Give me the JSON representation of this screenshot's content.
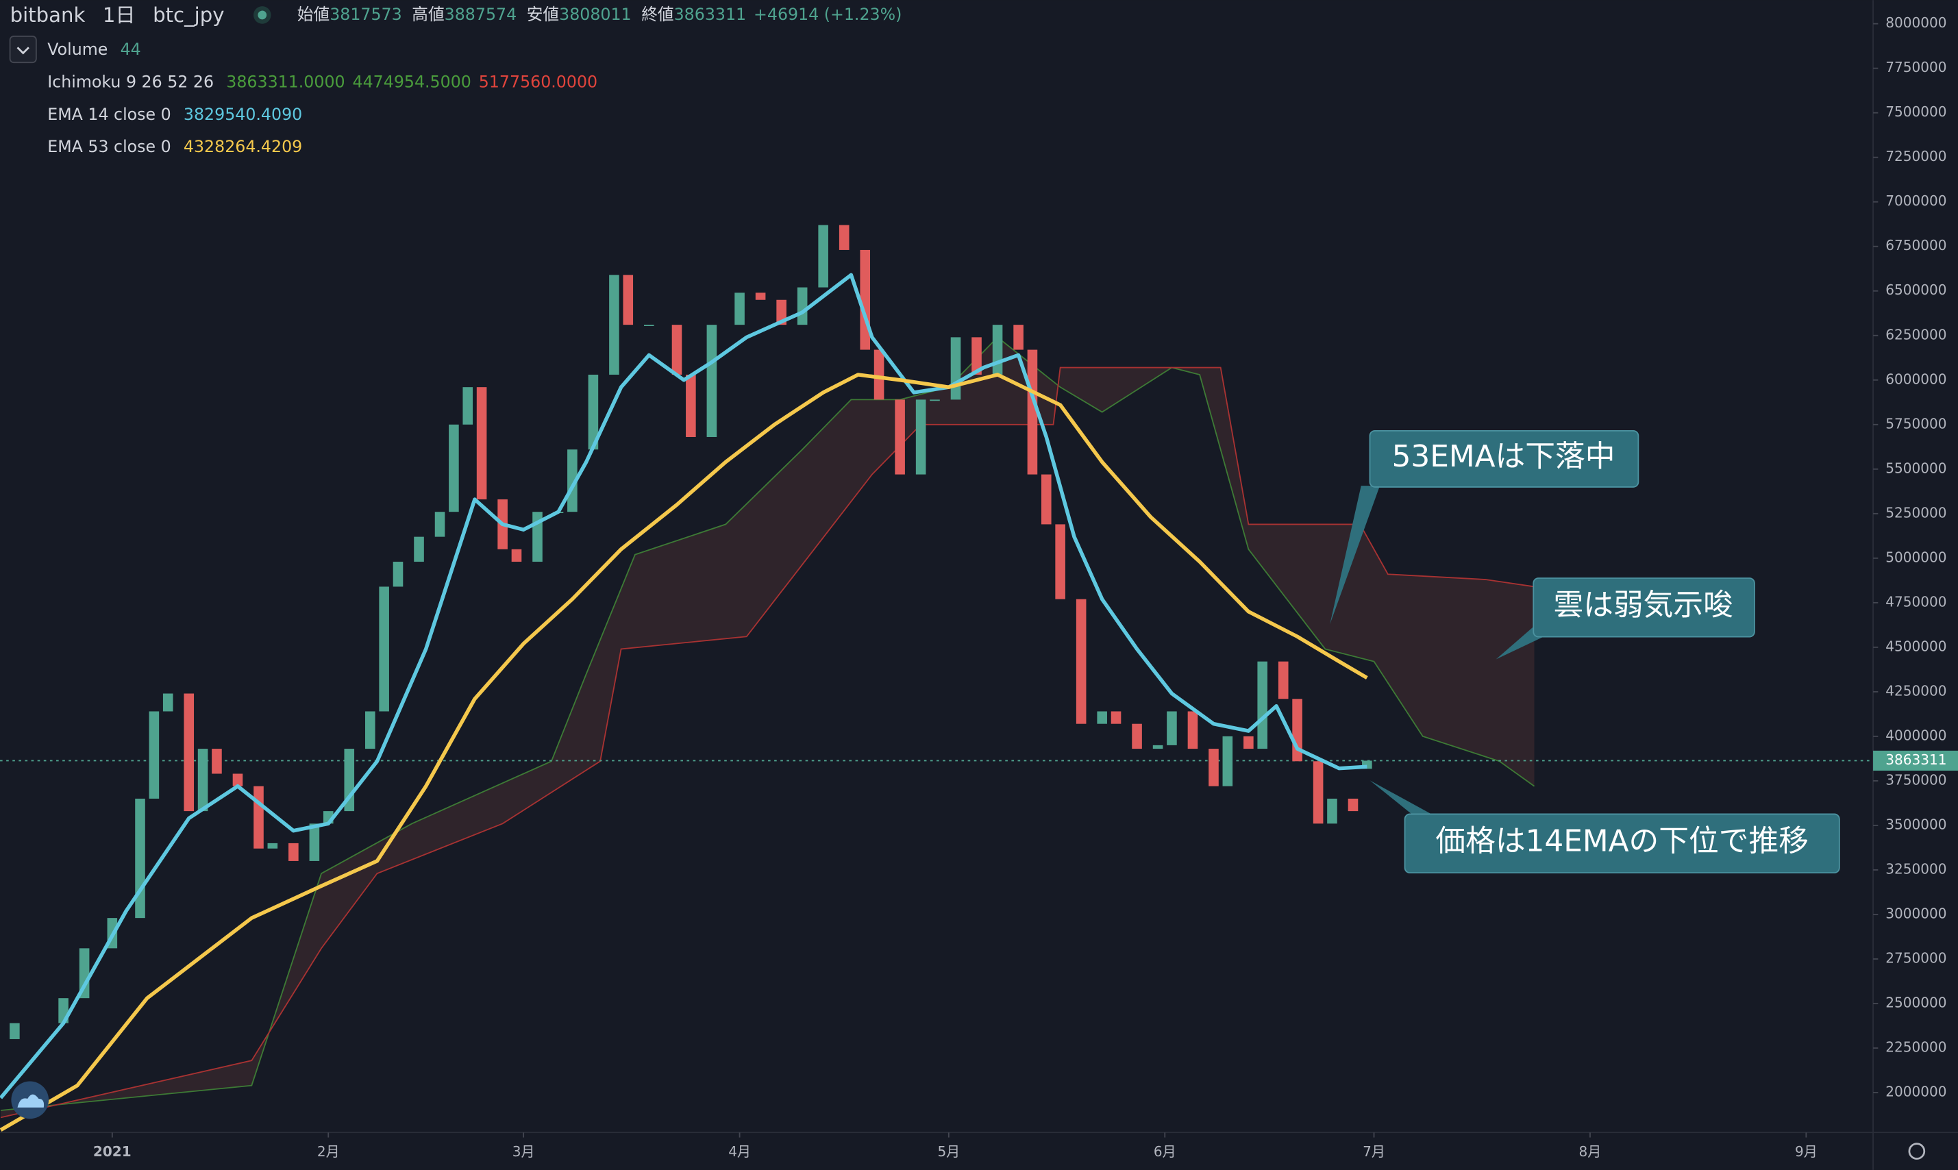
{
  "header": {
    "symbol": "bitbank",
    "interval": "1日",
    "pair": "btc_jpy",
    "open_label": "始値",
    "open": 3817573,
    "high_label": "高値",
    "high": 3887574,
    "low_label": "安値",
    "low": 3808011,
    "close_label": "終値",
    "close": 3863311,
    "change": "+46914 (+1.23%)"
  },
  "indicators": {
    "volume_name": "Volume",
    "volume_value": 44,
    "ichimoku_name": "Ichimoku 9 26 52 26",
    "ichimoku_values": [
      "3863311.0000",
      "4474954.5000",
      "5177560.0000"
    ],
    "ema14_name": "EMA 14 close 0",
    "ema14_value": "3829540.4090",
    "ema53_name": "EMA 53 close 0",
    "ema53_value": "4328264.4209"
  },
  "annotations": [
    "53EMAは下落中",
    "雲は弱気示唆",
    "価格は14EMAの下位で推移"
  ],
  "chart_data": {
    "type": "candlestick",
    "xlim": [
      -16.1,
      252.6
    ],
    "ylim": [
      1790000,
      8133000
    ],
    "xticks": [
      {
        "value": 0,
        "label": "2021"
      },
      {
        "value": 31,
        "label": "2月"
      },
      {
        "value": 59,
        "label": "3月"
      },
      {
        "value": 90,
        "label": "4月"
      },
      {
        "value": 120,
        "label": "5月"
      },
      {
        "value": 151,
        "label": "6月"
      },
      {
        "value": 181,
        "label": "7月"
      },
      {
        "value": 212,
        "label": "8月"
      },
      {
        "value": 243,
        "label": "9月"
      }
    ],
    "yticks": [
      2000000,
      2250000,
      2500000,
      2750000,
      3000000,
      3250000,
      3500000,
      3750000,
      4000000,
      4250000,
      4500000,
      4750000,
      5000000,
      5250000,
      5500000,
      5750000,
      6000000,
      6250000,
      6500000,
      6750000,
      7000000,
      7250000,
      7500000,
      7750000,
      8000000
    ],
    "last_price": 3863311,
    "up_color": "#4fa38f",
    "down_color": "#e05c5c",
    "candles": {
      "x": [
        -14,
        -7,
        -4,
        0,
        4,
        6,
        8,
        11,
        13,
        15,
        18,
        21,
        23,
        26,
        29,
        31,
        34,
        37,
        39,
        41,
        44,
        47,
        49,
        51,
        53,
        56,
        58,
        61,
        64,
        66,
        69,
        72,
        74,
        77,
        81,
        83,
        86,
        90,
        93,
        96,
        99,
        102,
        105,
        108,
        110,
        113,
        116,
        118,
        121,
        124,
        127,
        130,
        132,
        134,
        136,
        139,
        142,
        144,
        147,
        150,
        152,
        155,
        158,
        160,
        163,
        165,
        168,
        170,
        173,
        175,
        178,
        180
      ],
      "open": [
        2300000,
        2390000,
        2530000,
        2810000,
        2980000,
        3650000,
        4140000,
        4240000,
        3580000,
        3930000,
        3790000,
        3720000,
        3370000,
        3400000,
        3300000,
        3510000,
        3580000,
        3930000,
        4140000,
        4840000,
        4980000,
        5120000,
        5260000,
        5750000,
        5960000,
        5330000,
        5050000,
        4980000,
        5260000,
        5260000,
        5610000,
        6030000,
        6590000,
        6310000,
        6310000,
        6030000,
        5680000,
        6310000,
        6490000,
        6450000,
        6310000,
        6520000,
        6870000,
        6730000,
        6170000,
        5890000,
        5470000,
        5890000,
        5890000,
        6240000,
        6030000,
        6310000,
        6170000,
        5470000,
        5190000,
        4770000,
        4070000,
        4140000,
        4070000,
        3930000,
        3950000,
        4140000,
        3930000,
        3720000,
        4000000,
        3930000,
        4420000,
        4210000,
        3860000,
        3510000,
        3650000,
        3817573
      ],
      "close": [
        2390000,
        2530000,
        2810000,
        2980000,
        3650000,
        4140000,
        4240000,
        3580000,
        3930000,
        3790000,
        3720000,
        3370000,
        3400000,
        3300000,
        3510000,
        3580000,
        3930000,
        4140000,
        4840000,
        4980000,
        5120000,
        5260000,
        5750000,
        5960000,
        5330000,
        5050000,
        4980000,
        5260000,
        5260000,
        5610000,
        6030000,
        6590000,
        6310000,
        6310000,
        6030000,
        5680000,
        6310000,
        6490000,
        6450000,
        6310000,
        6520000,
        6870000,
        6730000,
        6170000,
        5890000,
        5470000,
        5890000,
        5890000,
        6240000,
        6030000,
        6310000,
        6170000,
        5470000,
        5190000,
        4770000,
        4070000,
        4140000,
        4070000,
        3930000,
        3950000,
        4140000,
        3930000,
        3720000,
        4000000,
        3930000,
        4420000,
        4210000,
        3860000,
        3510000,
        3650000,
        3580000,
        3863311
      ]
    },
    "lines": [
      {
        "name": "EMA 14",
        "color": "#5ec8e0",
        "x": [
          -16,
          -7,
          2,
          11,
          18,
          26,
          31,
          38,
          45,
          52,
          56,
          59,
          64,
          68,
          73,
          77,
          82,
          86,
          91,
          99,
          106,
          109,
          115,
          120,
          125,
          130,
          134,
          138,
          142,
          147,
          152,
          158,
          163,
          167,
          170,
          176,
          180
        ],
        "values": [
          1970000,
          2390000,
          3020000,
          3540000,
          3720000,
          3470000,
          3510000,
          3860000,
          4490000,
          5330000,
          5190000,
          5160000,
          5260000,
          5540000,
          5960000,
          6140000,
          6000000,
          6100000,
          6240000,
          6380000,
          6590000,
          6240000,
          5930000,
          5960000,
          6070000,
          6140000,
          5680000,
          5120000,
          4770000,
          4490000,
          4240000,
          4070000,
          4030000,
          4170000,
          3930000,
          3820000,
          3829540
        ]
      },
      {
        "name": "EMA 53",
        "color": "#f5c84c",
        "x": [
          -16,
          -5,
          5,
          20,
          30,
          38,
          45,
          52,
          59,
          66,
          73,
          81,
          88,
          95,
          102,
          107,
          113,
          120,
          127,
          136,
          142,
          149,
          156,
          163,
          170,
          176,
          180
        ],
        "values": [
          1790000,
          2040000,
          2530000,
          2980000,
          3160000,
          3300000,
          3720000,
          4210000,
          4520000,
          4770000,
          5050000,
          5300000,
          5540000,
          5750000,
          5930000,
          6030000,
          6000000,
          5960000,
          6030000,
          5860000,
          5540000,
          5230000,
          4980000,
          4700000,
          4560000,
          4420000,
          4328264
        ]
      }
    ],
    "cloud": {
      "fill": "#3a2a2e",
      "span_a": {
        "color": "#3d7a35",
        "x": [
          -16,
          20,
          30,
          43,
          63,
          68,
          75,
          88,
          99,
          106,
          113,
          120,
          127,
          136,
          142,
          152,
          156,
          163,
          174,
          181,
          188,
          199,
          204
        ],
        "values": [
          1900000,
          2040000,
          3230000,
          3510000,
          3860000,
          4350000,
          5020000,
          5190000,
          5610000,
          5890000,
          5890000,
          5960000,
          6240000,
          5960000,
          5820000,
          6070000,
          6030000,
          5050000,
          4490000,
          4420000,
          4000000,
          3860000,
          3720000
        ]
      },
      "span_b": {
        "color": "#a83232",
        "x": [
          -16,
          20,
          30,
          38,
          56,
          70,
          73,
          91,
          109,
          116,
          135,
          136,
          159,
          163,
          179,
          183,
          197,
          204
        ],
        "values": [
          1860000,
          2180000,
          2810000,
          3230000,
          3510000,
          3860000,
          4490000,
          4560000,
          5470000,
          5750000,
          5750000,
          6070000,
          6070000,
          5190000,
          5190000,
          4910000,
          4880000,
          4840000
        ]
      }
    }
  }
}
